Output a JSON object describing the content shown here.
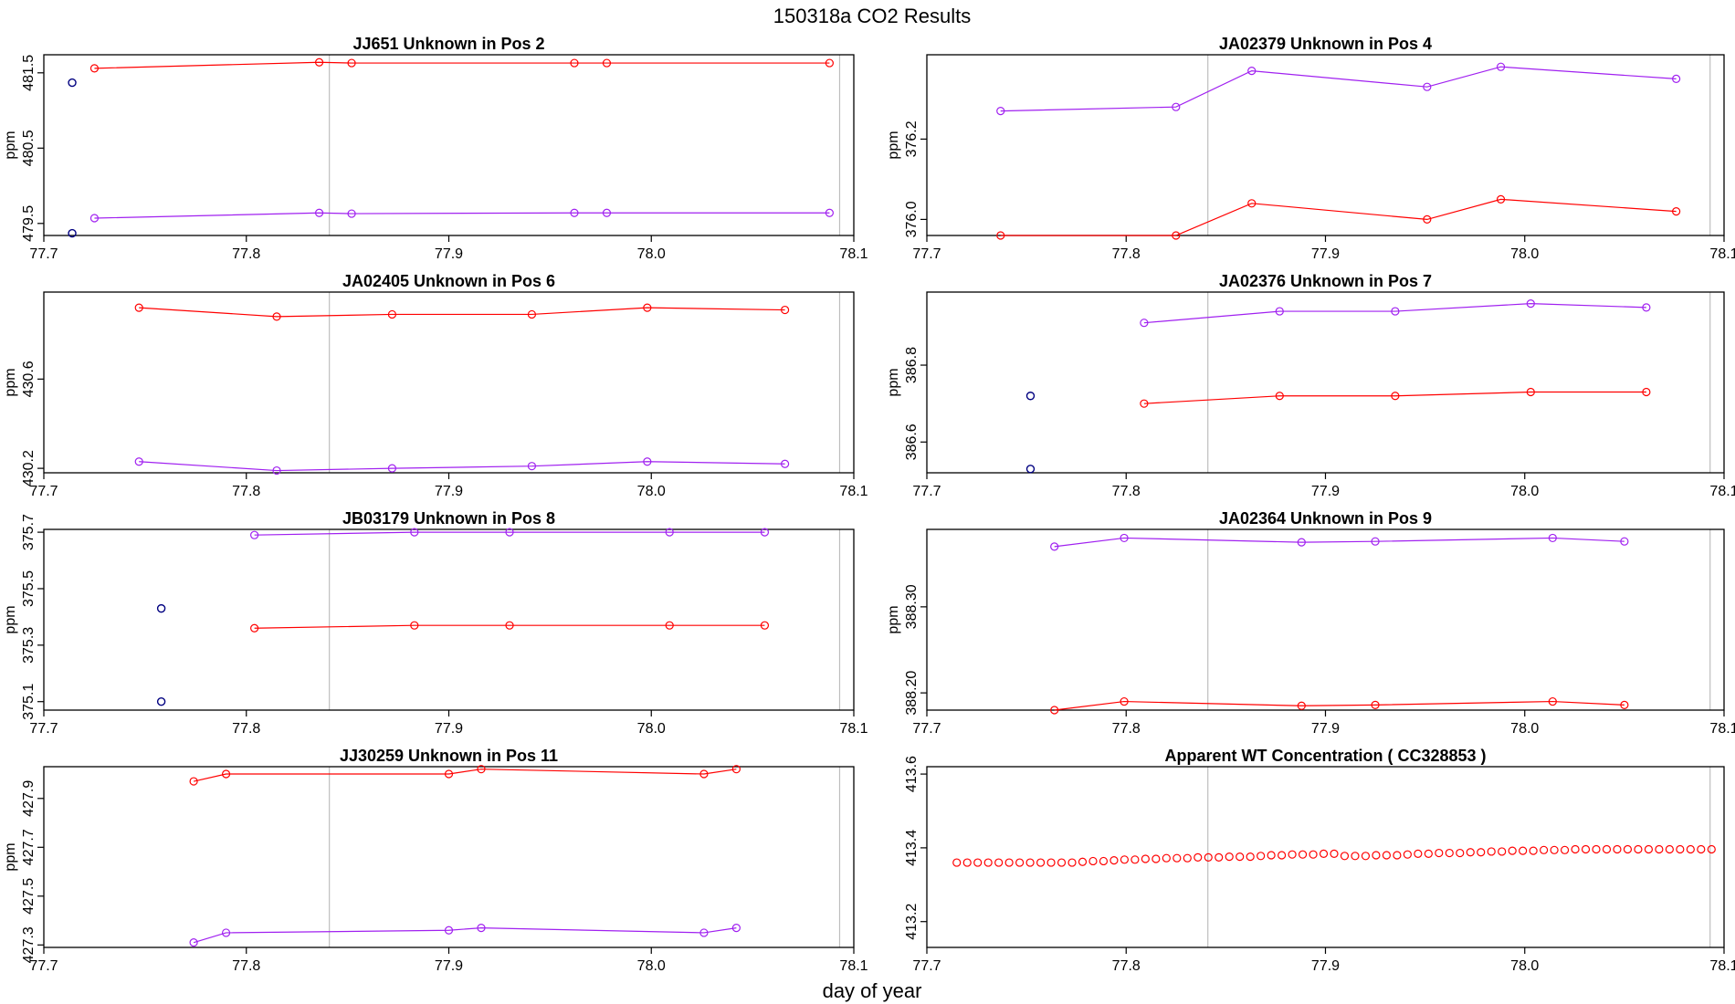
{
  "figure": {
    "title": "150318a  CO2 Results",
    "xlabel": "day of year"
  },
  "style": {
    "series_red": "#ff0000",
    "series_purple": "#a020f0",
    "outlier": "#000080",
    "vline": "#bebebe"
  },
  "chart_data": [
    {
      "type": "line",
      "title": "JJ651    Unknown in Pos 2",
      "ylabel": "ppm",
      "xlim": [
        77.7,
        78.1
      ],
      "xticks": [
        77.7,
        77.8,
        77.9,
        78.0,
        78.1
      ],
      "xtick_labels": [
        "77.7",
        "77.8",
        "77.9",
        "78.0",
        "78.1"
      ],
      "ylim": [
        479.34,
        481.74
      ],
      "yticks": [
        479.5,
        480.5,
        481.5
      ],
      "ytick_labels": [
        "479.5",
        "480.5",
        "481.5"
      ],
      "vlines": [
        77.841,
        78.093
      ],
      "series": [
        {
          "name": "red",
          "color": "red",
          "x": [
            77.725,
            77.836,
            77.852,
            77.962,
            77.978,
            78.088
          ],
          "y": [
            481.56,
            481.64,
            481.63,
            481.63,
            481.63,
            481.63
          ]
        },
        {
          "name": "purple",
          "color": "purple",
          "x": [
            77.725,
            77.836,
            77.852,
            77.962,
            77.978,
            78.088
          ],
          "y": [
            479.57,
            479.64,
            479.63,
            479.64,
            479.64,
            479.64
          ]
        }
      ],
      "points": [
        {
          "x": 77.714,
          "y": 481.37,
          "color": "outlier"
        },
        {
          "x": 77.714,
          "y": 479.37,
          "color": "outlier"
        }
      ]
    },
    {
      "type": "line",
      "title": "JA02379    Unknown in Pos 4",
      "ylabel": "ppm",
      "xlim": [
        77.7,
        78.1
      ],
      "xticks": [
        77.7,
        77.8,
        77.9,
        78.0,
        78.1
      ],
      "xtick_labels": [
        "77.7",
        "77.8",
        "77.9",
        "78.0",
        "78.1"
      ],
      "ylim": [
        375.96,
        376.41
      ],
      "yticks": [
        376.0,
        376.2
      ],
      "ytick_labels": [
        "376.0",
        "376.2"
      ],
      "vlines": [
        77.841,
        78.093
      ],
      "series": [
        {
          "name": "red",
          "color": "red",
          "x": [
            77.737,
            77.825,
            77.863,
            77.951,
            77.988,
            78.076
          ],
          "y": [
            375.96,
            375.96,
            376.04,
            376.0,
            376.05,
            376.02
          ]
        },
        {
          "name": "purple",
          "color": "purple",
          "x": [
            77.737,
            77.825,
            77.863,
            77.951,
            77.988,
            78.076
          ],
          "y": [
            376.27,
            376.28,
            376.37,
            376.33,
            376.38,
            376.35
          ]
        }
      ],
      "points": []
    },
    {
      "type": "line",
      "title": "JA02405    Unknown in Pos 6",
      "ylabel": "ppm",
      "xlim": [
        77.7,
        78.1
      ],
      "xticks": [
        77.7,
        77.8,
        77.9,
        78.0,
        78.1
      ],
      "xtick_labels": [
        "77.7",
        "77.8",
        "77.9",
        "78.0",
        "78.1"
      ],
      "ylim": [
        430.18,
        430.99
      ],
      "yticks": [
        430.2,
        430.6
      ],
      "ytick_labels": [
        "430.2",
        "430.6"
      ],
      "vlines": [
        77.841,
        78.093
      ],
      "series": [
        {
          "name": "red",
          "color": "red",
          "x": [
            77.747,
            77.815,
            77.872,
            77.941,
            77.998,
            78.066
          ],
          "y": [
            430.92,
            430.88,
            430.89,
            430.89,
            430.92,
            430.91
          ]
        },
        {
          "name": "purple",
          "color": "purple",
          "x": [
            77.747,
            77.815,
            77.872,
            77.941,
            77.998,
            78.066
          ],
          "y": [
            430.23,
            430.19,
            430.2,
            430.21,
            430.23,
            430.22
          ]
        }
      ],
      "points": []
    },
    {
      "type": "line",
      "title": "JA02376    Unknown in Pos 7",
      "ylabel": "ppm",
      "xlim": [
        77.7,
        78.1
      ],
      "xticks": [
        77.7,
        77.8,
        77.9,
        78.0,
        78.1
      ],
      "xtick_labels": [
        "77.7",
        "77.8",
        "77.9",
        "78.0",
        "78.1"
      ],
      "ylim": [
        386.52,
        386.99
      ],
      "yticks": [
        386.6,
        386.8
      ],
      "ytick_labels": [
        "386.6",
        "386.8"
      ],
      "vlines": [
        77.841,
        78.093
      ],
      "series": [
        {
          "name": "red",
          "color": "red",
          "x": [
            77.809,
            77.877,
            77.935,
            78.003,
            78.061
          ],
          "y": [
            386.7,
            386.72,
            386.72,
            386.73,
            386.73
          ]
        },
        {
          "name": "purple",
          "color": "purple",
          "x": [
            77.809,
            77.877,
            77.935,
            78.003,
            78.061
          ],
          "y": [
            386.91,
            386.94,
            386.94,
            386.96,
            386.95
          ]
        }
      ],
      "points": [
        {
          "x": 77.752,
          "y": 386.72,
          "color": "outlier"
        },
        {
          "x": 77.752,
          "y": 386.53,
          "color": "outlier"
        }
      ]
    },
    {
      "type": "line",
      "title": "JB03179    Unknown in Pos 8",
      "ylabel": "ppm",
      "xlim": [
        77.7,
        78.1
      ],
      "xticks": [
        77.7,
        77.8,
        77.9,
        78.0,
        78.1
      ],
      "xtick_labels": [
        "77.7",
        "77.8",
        "77.9",
        "78.0",
        "78.1"
      ],
      "ylim": [
        375.07,
        375.71
      ],
      "yticks": [
        375.1,
        375.3,
        375.5,
        375.7
      ],
      "ytick_labels": [
        "375.1",
        "375.3",
        "375.5",
        "375.7"
      ],
      "vlines": [
        77.841,
        78.093
      ],
      "series": [
        {
          "name": "red",
          "color": "red",
          "x": [
            77.804,
            77.883,
            77.93,
            78.009,
            78.056
          ],
          "y": [
            375.36,
            375.37,
            375.37,
            375.37,
            375.37
          ]
        },
        {
          "name": "purple",
          "color": "purple",
          "x": [
            77.804,
            77.883,
            77.93,
            78.009,
            78.056
          ],
          "y": [
            375.69,
            375.7,
            375.7,
            375.7,
            375.7
          ]
        }
      ],
      "points": [
        {
          "x": 77.758,
          "y": 375.43,
          "color": "outlier"
        },
        {
          "x": 77.758,
          "y": 375.1,
          "color": "outlier"
        }
      ]
    },
    {
      "type": "line",
      "title": "JA02364    Unknown in Pos 9",
      "ylabel": "ppm",
      "xlim": [
        77.7,
        78.1
      ],
      "xticks": [
        77.7,
        77.8,
        77.9,
        78.0,
        78.1
      ],
      "xtick_labels": [
        "77.7",
        "77.8",
        "77.9",
        "78.0",
        "78.1"
      ],
      "ylim": [
        388.18,
        388.39
      ],
      "yticks": [
        388.2,
        388.3
      ],
      "ytick_labels": [
        "388.20",
        "388.30"
      ],
      "vlines": [
        77.841,
        78.093
      ],
      "series": [
        {
          "name": "red",
          "color": "red",
          "x": [
            77.764,
            77.799,
            77.888,
            77.925,
            78.014,
            78.05
          ],
          "y": [
            388.18,
            388.19,
            388.185,
            388.186,
            388.19,
            388.186
          ]
        },
        {
          "name": "purple",
          "color": "purple",
          "x": [
            77.764,
            77.799,
            77.888,
            77.925,
            78.014,
            78.05
          ],
          "y": [
            388.37,
            388.38,
            388.375,
            388.376,
            388.38,
            388.376
          ]
        }
      ],
      "points": []
    },
    {
      "type": "line",
      "title": "JJ30259    Unknown in Pos 11",
      "ylabel": "ppm",
      "xlim": [
        77.7,
        78.1
      ],
      "xticks": [
        77.7,
        77.8,
        77.9,
        78.0,
        78.1
      ],
      "xtick_labels": [
        "77.7",
        "77.8",
        "77.9",
        "78.0",
        "78.1"
      ],
      "ylim": [
        427.29,
        428.03
      ],
      "yticks": [
        427.3,
        427.5,
        427.7,
        427.9
      ],
      "ytick_labels": [
        "427.3",
        "427.5",
        "427.7",
        "427.9"
      ],
      "vlines": [
        77.841,
        78.093
      ],
      "series": [
        {
          "name": "red",
          "color": "red",
          "x": [
            77.774,
            77.79,
            77.9,
            77.916,
            78.026,
            78.042
          ],
          "y": [
            427.97,
            428.0,
            428.0,
            428.02,
            428.0,
            428.02
          ]
        },
        {
          "name": "purple",
          "color": "purple",
          "x": [
            77.774,
            77.79,
            77.9,
            77.916,
            78.026,
            78.042
          ],
          "y": [
            427.31,
            427.35,
            427.36,
            427.37,
            427.35,
            427.37
          ]
        }
      ],
      "points": []
    },
    {
      "type": "scatter",
      "title": "Apparent WT Concentration ( CC328853 )",
      "ylabel": "",
      "xlim": [
        77.7,
        78.1
      ],
      "xticks": [
        77.7,
        77.8,
        77.9,
        78.0,
        78.1
      ],
      "xtick_labels": [
        "77.7",
        "77.8",
        "77.9",
        "78.0",
        "78.1"
      ],
      "ylim": [
        413.13,
        413.62
      ],
      "yticks": [
        413.2,
        413.4,
        413.6
      ],
      "ytick_labels": [
        "413.2",
        "413.4",
        "413.6"
      ],
      "vlines": [
        77.841,
        78.093
      ],
      "series": [],
      "points": [],
      "scatter": {
        "color": "red",
        "x_start": 77.715,
        "x_step": 0.00526,
        "count": 73,
        "y": [
          413.36,
          413.36,
          413.36,
          413.36,
          413.36,
          413.36,
          413.36,
          413.36,
          413.36,
          413.36,
          413.36,
          413.36,
          413.362,
          413.364,
          413.364,
          413.366,
          413.368,
          413.368,
          413.37,
          413.37,
          413.372,
          413.372,
          413.372,
          413.374,
          413.374,
          413.374,
          413.376,
          413.376,
          413.376,
          413.378,
          413.38,
          413.38,
          413.382,
          413.382,
          413.382,
          413.384,
          413.384,
          413.378,
          413.378,
          413.378,
          413.38,
          413.38,
          413.38,
          413.382,
          413.384,
          413.384,
          413.386,
          413.386,
          413.386,
          413.388,
          413.388,
          413.39,
          413.39,
          413.392,
          413.392,
          413.392,
          413.394,
          413.394,
          413.394,
          413.396,
          413.396,
          413.396,
          413.396,
          413.396,
          413.396,
          413.396,
          413.396,
          413.396,
          413.396,
          413.396,
          413.396,
          413.396,
          413.396
        ]
      }
    }
  ]
}
